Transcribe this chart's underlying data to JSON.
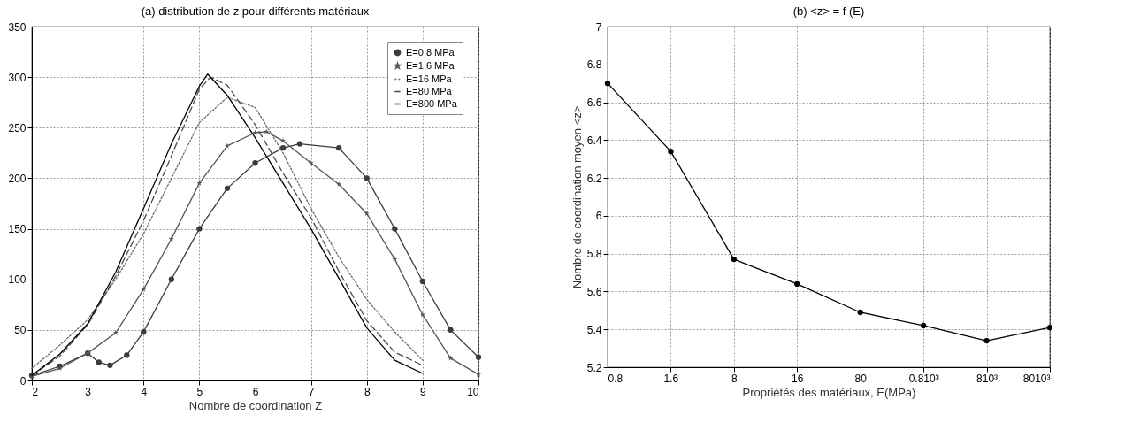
{
  "chart_data": [
    {
      "type": "line",
      "title": "(a)   distribution de z pour différents matériaux",
      "xlabel": "Nombre de coordination Z",
      "xlim": [
        2,
        10
      ],
      "xticks": [
        2,
        3,
        4,
        5,
        6,
        7,
        8,
        9,
        10
      ],
      "ylim": [
        0,
        350
      ],
      "yticks": [
        0,
        50,
        100,
        150,
        200,
        250,
        300,
        350
      ],
      "grid": true,
      "legend": "top right",
      "series": [
        {
          "name": "E=0.8 MPa",
          "color": "#3c3c3c",
          "line_style": "solid",
          "marker": "circle",
          "x": [
            2,
            2.5,
            3,
            3.2,
            3.4,
            3.7,
            4,
            4.5,
            5,
            5.5,
            6,
            6.5,
            6.8,
            7.5,
            8,
            8.5,
            9,
            9.5,
            10
          ],
          "values": [
            5,
            14,
            27,
            18,
            15,
            25,
            48,
            100,
            150,
            190,
            215,
            230,
            234,
            230,
            200,
            150,
            98,
            50,
            23
          ]
        },
        {
          "name": "E=1.6 MPa",
          "color": "#555555",
          "line_style": "solid",
          "marker": "star",
          "x": [
            2,
            2.5,
            3,
            3.5,
            4,
            4.5,
            5,
            5.5,
            6,
            6.2,
            6.5,
            7,
            7.5,
            8,
            8.5,
            9,
            9.5,
            10
          ],
          "values": [
            4,
            12,
            27,
            47,
            90,
            140,
            195,
            232,
            245,
            246,
            237,
            215,
            194,
            165,
            120,
            65,
            22,
            6
          ]
        },
        {
          "name": "E=16 MPa",
          "color": "#6a6a6a",
          "line_style": "dotted",
          "marker": "none",
          "x": [
            2,
            2.5,
            3,
            3.5,
            4,
            4.5,
            5,
            5.5,
            6,
            6.5,
            7,
            7.5,
            8,
            8.5,
            9
          ],
          "values": [
            12,
            35,
            60,
            100,
            145,
            200,
            255,
            280,
            270,
            225,
            170,
            122,
            80,
            48,
            20
          ]
        },
        {
          "name": "E=80 MPa",
          "color": "#4a4a4a",
          "line_style": "dashed",
          "marker": "none",
          "x": [
            2,
            2.5,
            3,
            3.5,
            4,
            4.5,
            5,
            5.2,
            5.5,
            6,
            6.5,
            7,
            7.5,
            8,
            8.5,
            9
          ],
          "values": [
            5,
            24,
            55,
            103,
            158,
            222,
            288,
            300,
            292,
            253,
            205,
            161,
            108,
            59,
            28,
            15
          ]
        },
        {
          "name": "E=800 MPa",
          "color": "#000000",
          "line_style": "solid",
          "marker": "none",
          "x": [
            2,
            2.5,
            3,
            3.5,
            4,
            4.5,
            5,
            5.15,
            5.5,
            6,
            6.5,
            7,
            7.5,
            8,
            8.5,
            9
          ],
          "values": [
            5,
            26,
            56,
            107,
            170,
            234,
            291,
            303,
            282,
            240,
            195,
            150,
            101,
            52,
            20,
            7
          ]
        }
      ]
    },
    {
      "type": "line",
      "title": "(b) <z> = f (E)",
      "xlabel": "Propriétés des matériaux, E(MPa)",
      "ylabel": "Nombre de coordination moyen <z>",
      "categories": [
        "0.8",
        "1.6",
        "8",
        "16",
        "80",
        "0.810³",
        "810³",
        "8010³"
      ],
      "ylim": [
        5.2,
        7
      ],
      "yticks": [
        5.2,
        5.4,
        5.6,
        5.8,
        6,
        6.2,
        6.4,
        6.6,
        6.8,
        7
      ],
      "grid": true,
      "marker": "circle",
      "series": [
        {
          "color": "#000000",
          "values": [
            6.7,
            6.34,
            5.77,
            5.64,
            5.49,
            5.42,
            5.34,
            5.41
          ]
        }
      ]
    }
  ]
}
